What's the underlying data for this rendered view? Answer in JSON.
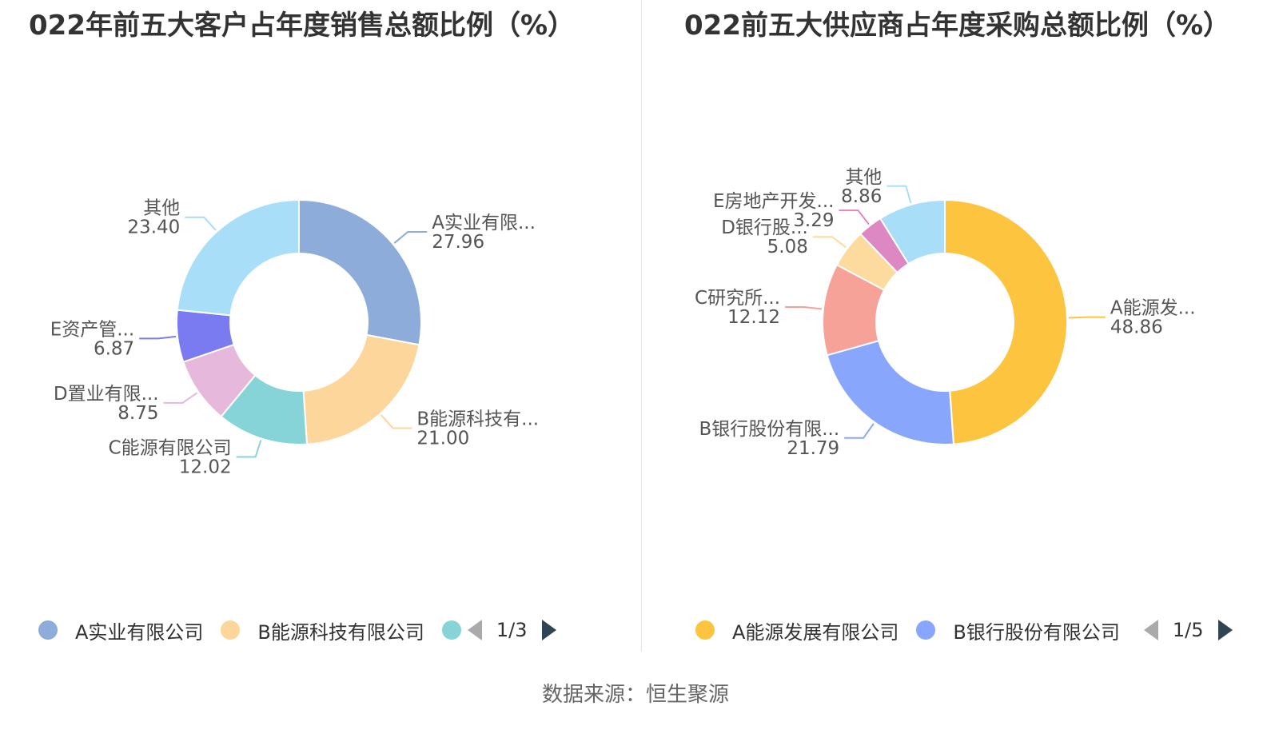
{
  "source_prefix": "数据来源：",
  "source_name": "恒生聚源",
  "chart_data": [
    {
      "type": "pie",
      "title": "022年前五大客户占年度销售总额比例（%）",
      "labels": [
        "A实业有限...",
        "B能源科技有...",
        "C能源有限公司",
        "D置业有限...",
        "E资产管...",
        "其他"
      ],
      "values": [
        27.96,
        21.0,
        12.02,
        8.75,
        6.87,
        23.4
      ],
      "colors": [
        "#8eacd9",
        "#fdd69b",
        "#86d4d8",
        "#e6b8db",
        "#7a7bf0",
        "#a8def8"
      ],
      "legend": {
        "visible": [
          "A实业有限公司",
          "B能源科技有限公司",
          ""
        ],
        "page": "1/3"
      }
    },
    {
      "type": "pie",
      "title": "022前五大供应商占年度采购总额比例（%）",
      "labels": [
        "A能源发...",
        "B银行股份有限...",
        "C研究所...",
        "D银行股...",
        "E房地产开发...",
        "其他"
      ],
      "values": [
        48.86,
        21.79,
        12.12,
        5.08,
        3.29,
        8.86
      ],
      "colors": [
        "#fdc43f",
        "#88a6fc",
        "#f7a299",
        "#fddb9e",
        "#de88c3",
        "#a8def8"
      ],
      "legend": {
        "visible": [
          "A能源发展有限公司",
          "B银行股份有限公司"
        ],
        "page": "1/5"
      }
    }
  ]
}
